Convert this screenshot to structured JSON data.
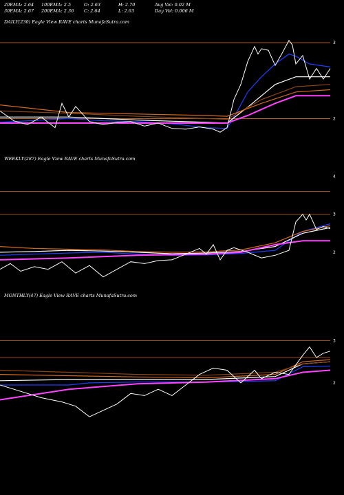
{
  "header": {
    "rows": [
      [
        {
          "key": "ema20",
          "text": "20EMA: 2.64"
        },
        {
          "key": "ema100",
          "text": "100EMA: 2.5"
        },
        {
          "key": "open",
          "text": "O: 2.63"
        },
        {
          "key": "high",
          "text": "H: 2.70"
        },
        {
          "key": "avgvol",
          "text": "Avg Vol: 0.02  M"
        }
      ],
      [
        {
          "key": "ema30",
          "text": "30EMA: 2.67"
        },
        {
          "key": "ema200",
          "text": "200EMA: 2.36"
        },
        {
          "key": "close",
          "text": "C: 2.64"
        },
        {
          "key": "low",
          "text": "L: 2.63"
        },
        {
          "key": "dayvol",
          "text": "Day Vol: 0.006  M"
        }
      ]
    ]
  },
  "colors": {
    "background": "#000000",
    "price": "#ffffff",
    "ema_short": "#1f3fff",
    "ema_long": "#ff44ff",
    "resistance": "#d2691e",
    "ema_mid": "#8b4513"
  },
  "chart_data": [
    {
      "type": "line",
      "title": "DAILY(230) Eagle   View  RAVE charts MunafaSutra.com",
      "ylim": [
        1.75,
        3.2
      ],
      "yticks": [
        {
          "value": 3,
          "label": "3"
        },
        {
          "value": 2,
          "label": "2"
        }
      ],
      "reference_lines": [
        3,
        2
      ],
      "price_x": [
        0,
        20,
        40,
        60,
        80,
        90,
        100,
        110,
        130,
        150,
        170,
        190,
        210,
        230,
        250,
        270,
        290,
        310,
        320,
        330,
        340,
        350,
        360,
        370,
        375,
        380,
        390,
        400,
        410,
        420,
        425,
        430,
        440,
        450,
        460,
        470,
        480
      ],
      "price": [
        2.1,
        1.97,
        1.92,
        2.02,
        1.88,
        2.2,
        2.02,
        2.16,
        1.96,
        1.92,
        1.95,
        1.96,
        1.9,
        1.94,
        1.87,
        1.86,
        1.89,
        1.86,
        1.82,
        1.88,
        2.25,
        2.45,
        2.75,
        2.95,
        2.85,
        2.92,
        2.9,
        2.7,
        2.86,
        3.03,
        2.97,
        2.72,
        2.83,
        2.52,
        2.66,
        2.52,
        2.66
      ],
      "series": [
        {
          "color_key": "ema_short",
          "x": [
            0,
            60,
            100,
            150,
            200,
            250,
            300,
            330,
            345,
            360,
            380,
            400,
            420,
            430,
            450,
            480
          ],
          "y": [
            1.95,
            1.98,
            2.0,
            1.97,
            1.96,
            1.93,
            1.88,
            1.87,
            2.1,
            2.35,
            2.55,
            2.72,
            2.85,
            2.82,
            2.72,
            2.68
          ]
        },
        {
          "color_key": "price",
          "x": [
            0,
            100,
            200,
            300,
            330,
            360,
            400,
            430,
            460,
            480
          ],
          "y": [
            2.02,
            2.02,
            1.98,
            1.95,
            1.94,
            2.15,
            2.45,
            2.55,
            2.55,
            2.55
          ]
        },
        {
          "color_key": "ema_mid",
          "x": [
            0,
            100,
            200,
            300,
            330,
            380,
            430,
            480
          ],
          "y": [
            2.1,
            2.07,
            2.03,
            2.0,
            1.99,
            2.25,
            2.42,
            2.45
          ]
        },
        {
          "color_key": "resistance",
          "x": [
            0,
            100,
            200,
            300,
            330,
            380,
            430,
            480
          ],
          "y": [
            2.18,
            2.08,
            2.06,
            2.04,
            2.03,
            2.2,
            2.35,
            2.38
          ]
        },
        {
          "color_key": "ema_long",
          "x": [
            0,
            100,
            200,
            300,
            330,
            360,
            400,
            430,
            480
          ],
          "y": [
            1.94,
            1.94,
            1.94,
            1.94,
            1.94,
            2.04,
            2.2,
            2.3,
            2.3
          ]
        }
      ]
    },
    {
      "type": "line",
      "title": "WEEKLY(287) Eagle   View  RAVE charts MunafaSutra.com",
      "ylim": [
        1.4,
        4.3
      ],
      "yticks": [
        {
          "value": 4,
          "label": "4"
        },
        {
          "value": 3,
          "label": "3"
        },
        {
          "value": 2,
          "label": "2"
        }
      ],
      "reference_lines": [
        3.6,
        3
      ],
      "price_x": [
        0,
        15,
        30,
        50,
        70,
        90,
        110,
        130,
        150,
        170,
        190,
        210,
        230,
        250,
        270,
        290,
        300,
        310,
        320,
        330,
        340,
        360,
        380,
        400,
        420,
        430,
        440,
        445,
        450,
        460,
        470,
        480
      ],
      "price": [
        1.55,
        1.7,
        1.5,
        1.62,
        1.55,
        1.75,
        1.45,
        1.65,
        1.35,
        1.55,
        1.75,
        1.7,
        1.78,
        1.8,
        1.95,
        2.1,
        1.95,
        2.2,
        1.8,
        2.05,
        2.12,
        2.0,
        1.85,
        1.92,
        2.05,
        2.8,
        3.0,
        2.85,
        3.0,
        2.6,
        2.68,
        2.62
      ],
      "series": [
        {
          "color_key": "ema_short",
          "x": [
            0,
            50,
            100,
            150,
            200,
            250,
            300,
            350,
            400,
            440,
            480
          ],
          "y": [
            1.92,
            1.95,
            1.98,
            2.0,
            1.95,
            1.92,
            1.93,
            1.97,
            2.05,
            2.55,
            2.75
          ]
        },
        {
          "color_key": "price",
          "x": [
            0,
            50,
            100,
            150,
            200,
            250,
            300,
            350,
            400,
            440,
            480
          ],
          "y": [
            2.0,
            2.02,
            2.05,
            2.03,
            2.0,
            1.96,
            1.98,
            2.02,
            2.15,
            2.5,
            2.65
          ]
        },
        {
          "color_key": "resistance",
          "x": [
            0,
            50,
            100,
            150,
            200,
            250,
            300,
            350,
            400,
            440,
            480
          ],
          "y": [
            2.15,
            2.1,
            2.08,
            2.06,
            2.02,
            2.0,
            2.01,
            2.06,
            2.25,
            2.55,
            2.7
          ]
        },
        {
          "color_key": "ema_long",
          "x": [
            0,
            100,
            200,
            300,
            350,
            400,
            440,
            480
          ],
          "y": [
            1.8,
            1.85,
            1.92,
            1.95,
            2.0,
            2.2,
            2.3,
            2.3
          ]
        }
      ]
    },
    {
      "type": "line",
      "title": "MONTHLY(47) Eagle   View  RAVE charts MunafaSutra.com",
      "ylim": [
        1.3,
        3.9
      ],
      "yticks": [
        {
          "value": 3,
          "label": "3"
        },
        {
          "value": 2,
          "label": "2"
        }
      ],
      "reference_lines": [
        3,
        2.6
      ],
      "price_x": [
        0,
        30,
        60,
        90,
        110,
        130,
        150,
        170,
        190,
        210,
        230,
        250,
        270,
        290,
        310,
        330,
        350,
        370,
        380,
        400,
        420,
        440,
        450,
        460,
        470,
        480
      ],
      "price": [
        1.95,
        1.8,
        1.65,
        1.55,
        1.45,
        1.2,
        1.35,
        1.5,
        1.75,
        1.7,
        1.85,
        1.7,
        1.95,
        2.2,
        2.35,
        2.3,
        2.0,
        2.3,
        2.1,
        2.25,
        2.2,
        2.65,
        2.85,
        2.6,
        2.7,
        2.75
      ],
      "series": [
        {
          "color_key": "ema_short",
          "x": [
            0,
            100,
            130,
            200,
            300,
            400,
            440,
            480
          ],
          "y": [
            1.95,
            1.95,
            2.0,
            2.02,
            2.02,
            2.05,
            2.38,
            2.4
          ]
        },
        {
          "color_key": "price",
          "x": [
            0,
            100,
            200,
            300,
            400,
            440,
            480
          ],
          "y": [
            2.05,
            2.08,
            2.08,
            2.08,
            2.15,
            2.45,
            2.5
          ]
        },
        {
          "color_key": "resistance",
          "x": [
            0,
            100,
            200,
            300,
            400,
            440,
            480
          ],
          "y": [
            2.2,
            2.17,
            2.14,
            2.12,
            2.2,
            2.5,
            2.55
          ]
        },
        {
          "color_key": "ema_long",
          "x": [
            0,
            100,
            200,
            300,
            400,
            440,
            480
          ],
          "y": [
            1.6,
            1.85,
            1.98,
            2.02,
            2.1,
            2.25,
            2.3
          ]
        },
        {
          "color_key": "ema_mid",
          "x": [
            0,
            100,
            200,
            300,
            400,
            440,
            480
          ],
          "y": [
            2.3,
            2.25,
            2.2,
            2.18,
            2.25,
            2.45,
            2.5
          ]
        }
      ]
    }
  ]
}
